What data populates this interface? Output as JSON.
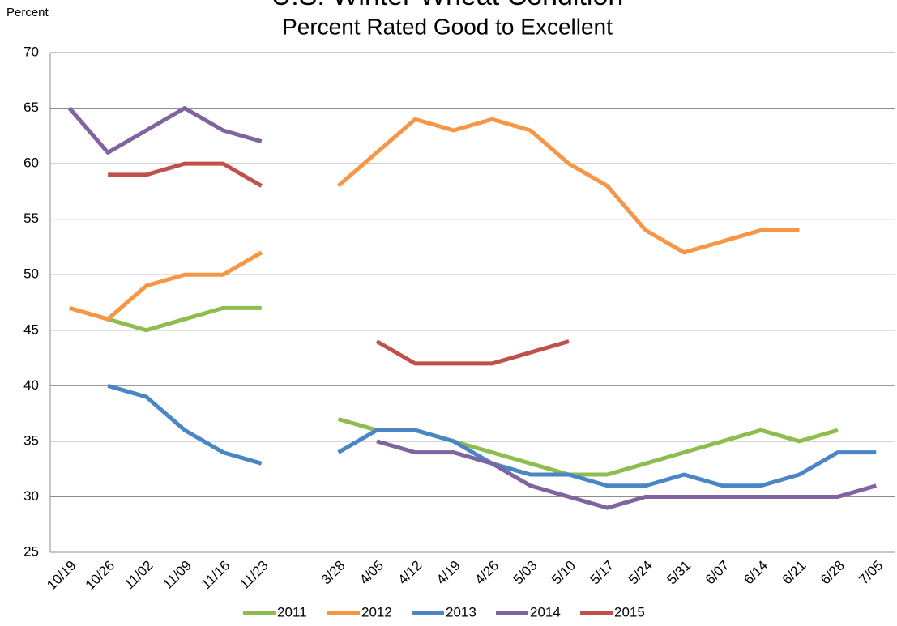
{
  "chart_data": {
    "type": "line",
    "title": "U.S. Winter Wheat Condition",
    "subtitle": "Percent Rated Good to Excellent",
    "y_label": "Percent",
    "categories": [
      "10/19",
      "10/26",
      "11/02",
      "11/09",
      "11/16",
      "11/23",
      null,
      "3/28",
      "4/05",
      "4/12",
      "4/19",
      "4/26",
      "5/03",
      "5/10",
      "5/17",
      "5/24",
      "5/31",
      "6/07",
      "6/14",
      "6/21",
      "6/28",
      "7/05"
    ],
    "series": [
      {
        "name": "2011",
        "color": "#8fbc4f",
        "values": [
          47,
          46,
          45,
          46,
          47,
          47,
          null,
          37,
          36,
          36,
          35,
          34,
          33,
          32,
          32,
          33,
          34,
          35,
          36,
          35,
          36,
          null
        ]
      },
      {
        "name": "2012",
        "color": "#f79646",
        "values": [
          47,
          46,
          49,
          50,
          50,
          52,
          null,
          58,
          61,
          64,
          63,
          64,
          63,
          60,
          58,
          54,
          52,
          53,
          54,
          54,
          null,
          null
        ]
      },
      {
        "name": "2013",
        "color": "#4a86c5",
        "values": [
          null,
          40,
          39,
          36,
          34,
          33,
          null,
          34,
          36,
          36,
          35,
          33,
          32,
          32,
          31,
          31,
          32,
          31,
          31,
          32,
          34,
          34
        ]
      },
      {
        "name": "2014",
        "color": "#8064a2",
        "values": [
          65,
          61,
          63,
          65,
          63,
          62,
          null,
          null,
          35,
          34,
          34,
          33,
          31,
          30,
          29,
          30,
          30,
          30,
          30,
          30,
          30,
          31
        ]
      },
      {
        "name": "2015",
        "color": "#c0504d",
        "values": [
          null,
          59,
          59,
          60,
          60,
          58,
          null,
          null,
          44,
          42,
          42,
          42,
          43,
          44,
          null,
          null,
          null,
          null,
          null,
          null,
          null,
          null
        ]
      }
    ],
    "ylim": [
      25,
      70
    ],
    "yticks": [
      25,
      30,
      35,
      40,
      45,
      50,
      55,
      60,
      65,
      70
    ],
    "grid": true,
    "legend": "bottom"
  }
}
